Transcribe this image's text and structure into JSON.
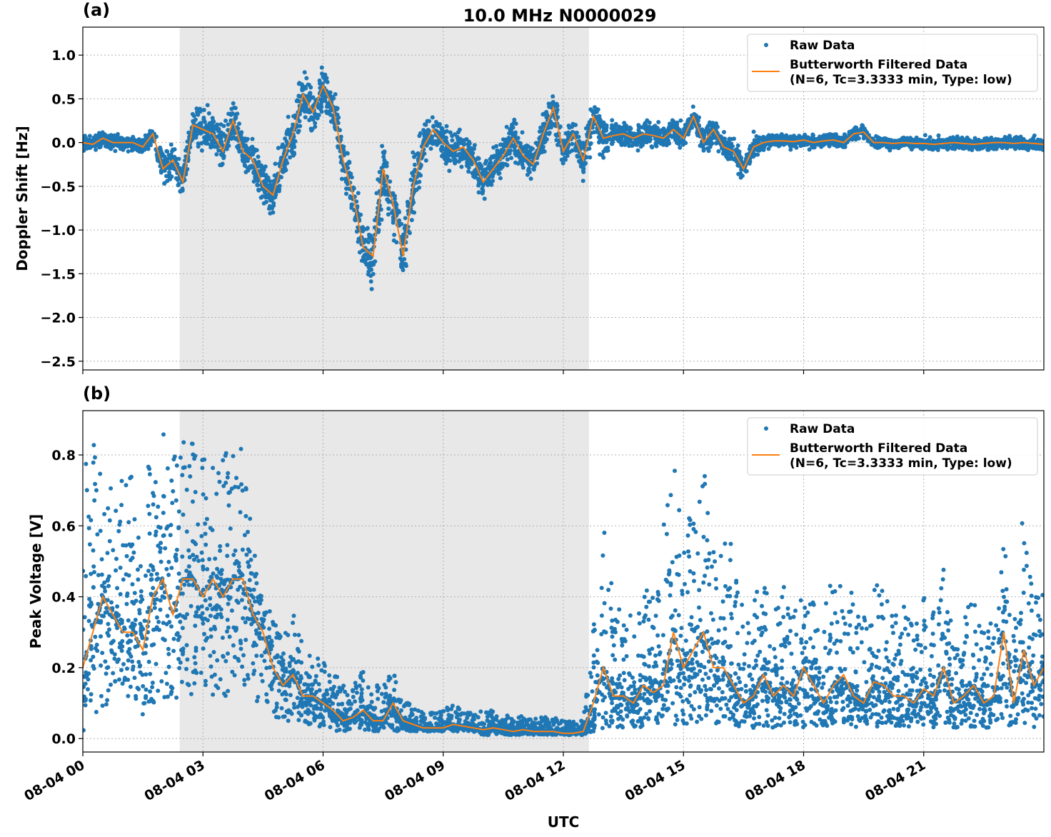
{
  "title": "10.0 MHz N0000029",
  "xlabel": "UTC",
  "x_ticks": [
    "08-04 00",
    "08-04 03",
    "08-04 06",
    "08-04 09",
    "08-04 12",
    "08-04 15",
    "08-04 18",
    "08-04 21"
  ],
  "legend": {
    "raw": "Raw Data",
    "filtered_line1": "Butterworth Filtered Data",
    "filtered_line2": "(N=6, Tc=3.3333 min, Type: low)"
  },
  "colors": {
    "raw": "#1f77b4",
    "filtered": "#ff7f0e",
    "shade": "#e8e8e8"
  },
  "chart_data": [
    {
      "type": "scatter",
      "panel_label": "(a)",
      "ylabel": "Doppler Shift [Hz]",
      "x_unit": "hours UTC on 08-04",
      "xlim": [
        0,
        24
      ],
      "ylim": [
        -2.6,
        1.32
      ],
      "y_ticks": [
        1.0,
        0.5,
        0.0,
        -0.5,
        -1.0,
        -1.5,
        -2.0,
        -2.5
      ],
      "y_tick_labels": [
        "1.0",
        "0.5",
        "0.0",
        "−0.5",
        "−1.0",
        "−1.5",
        "−2.0",
        "−2.5"
      ],
      "grid": true,
      "legend_position": "top-right",
      "shaded_interval_hours": [
        2.42,
        12.64
      ],
      "sample_step_hours": 0.25,
      "filtered": [
        0.0,
        -0.02,
        0.05,
        0.0,
        0.0,
        0.0,
        -0.05,
        0.1,
        -0.3,
        -0.2,
        -0.45,
        0.2,
        0.15,
        0.1,
        -0.1,
        0.25,
        -0.1,
        -0.2,
        -0.5,
        -0.6,
        -0.2,
        0.1,
        0.55,
        0.35,
        0.65,
        0.4,
        -0.2,
        -0.6,
        -1.2,
        -1.3,
        -0.3,
        -0.7,
        -1.3,
        -0.5,
        -0.05,
        0.15,
        0.0,
        -0.1,
        -0.05,
        -0.2,
        -0.45,
        -0.3,
        -0.15,
        0.05,
        -0.15,
        -0.25,
        0.1,
        0.4,
        -0.1,
        0.1,
        -0.2,
        0.3,
        0.05,
        0.08,
        0.1,
        0.05,
        0.1,
        0.08,
        0.05,
        0.15,
        0.05,
        0.3,
        0.0,
        0.15,
        -0.05,
        -0.1,
        -0.3,
        -0.05,
        0.0,
        0.02,
        0.02,
        0.01,
        0.03,
        0.0,
        0.02,
        0.03,
        0.0,
        0.1,
        0.12,
        0.0,
        0.0,
        -0.01,
        0.0,
        -0.01,
        -0.01,
        -0.02,
        -0.01,
        0.0,
        -0.01,
        -0.02,
        -0.01,
        0.0,
        0.0,
        -0.01,
        0.0,
        -0.01,
        -0.02
      ],
      "raw_spread": [
        0.12,
        0.12,
        0.12,
        0.12,
        0.12,
        0.12,
        0.12,
        0.12,
        0.25,
        0.25,
        0.25,
        0.25,
        0.35,
        0.35,
        0.35,
        0.35,
        0.35,
        0.35,
        0.35,
        0.35,
        0.4,
        0.4,
        0.4,
        0.4,
        0.4,
        0.4,
        0.4,
        0.4,
        0.5,
        0.5,
        0.5,
        0.5,
        0.5,
        0.5,
        0.3,
        0.3,
        0.3,
        0.3,
        0.3,
        0.3,
        0.3,
        0.3,
        0.3,
        0.3,
        0.3,
        0.3,
        0.3,
        0.3,
        0.3,
        0.3,
        0.35,
        0.35,
        0.35,
        0.2,
        0.2,
        0.2,
        0.2,
        0.2,
        0.2,
        0.2,
        0.2,
        0.2,
        0.2,
        0.2,
        0.2,
        0.2,
        0.2,
        0.2,
        0.1,
        0.1,
        0.1,
        0.1,
        0.1,
        0.1,
        0.1,
        0.1,
        0.1,
        0.1,
        0.1,
        0.1,
        0.1,
        0.1,
        0.1,
        0.1,
        0.1,
        0.1,
        0.1,
        0.1,
        0.1,
        0.1,
        0.1,
        0.1,
        0.1,
        0.1,
        0.1,
        0.1,
        0.1
      ]
    },
    {
      "type": "scatter",
      "panel_label": "(b)",
      "ylabel": "Peak Voltage [V]",
      "x_unit": "hours UTC on 08-04",
      "xlim": [
        0,
        24
      ],
      "ylim": [
        -0.038,
        0.925
      ],
      "y_ticks": [
        0.0,
        0.2,
        0.4,
        0.6,
        0.8
      ],
      "y_tick_labels": [
        "0.0",
        "0.2",
        "0.4",
        "0.6",
        "0.8"
      ],
      "grid": true,
      "legend_position": "top-right",
      "shaded_interval_hours": [
        2.42,
        12.64
      ],
      "sample_step_hours": 0.25,
      "filtered": [
        0.2,
        0.3,
        0.4,
        0.35,
        0.3,
        0.3,
        0.25,
        0.4,
        0.45,
        0.35,
        0.45,
        0.45,
        0.4,
        0.45,
        0.4,
        0.45,
        0.45,
        0.35,
        0.3,
        0.2,
        0.15,
        0.18,
        0.12,
        0.12,
        0.1,
        0.08,
        0.05,
        0.06,
        0.08,
        0.05,
        0.05,
        0.1,
        0.05,
        0.04,
        0.03,
        0.03,
        0.03,
        0.04,
        0.035,
        0.03,
        0.025,
        0.03,
        0.025,
        0.02,
        0.025,
        0.02,
        0.02,
        0.02,
        0.015,
        0.015,
        0.02,
        0.1,
        0.2,
        0.12,
        0.12,
        0.1,
        0.15,
        0.13,
        0.15,
        0.3,
        0.2,
        0.25,
        0.3,
        0.2,
        0.2,
        0.15,
        0.1,
        0.12,
        0.18,
        0.12,
        0.15,
        0.12,
        0.2,
        0.15,
        0.1,
        0.15,
        0.18,
        0.12,
        0.1,
        0.16,
        0.15,
        0.12,
        0.12,
        0.1,
        0.14,
        0.12,
        0.2,
        0.1,
        0.12,
        0.15,
        0.1,
        0.12,
        0.3,
        0.1,
        0.25,
        0.15,
        0.2
      ],
      "raw_high": [
        0.8,
        0.84,
        0.8,
        0.7,
        0.75,
        0.75,
        0.7,
        0.85,
        0.88,
        0.8,
        0.85,
        0.85,
        0.8,
        0.82,
        0.8,
        0.83,
        0.84,
        0.55,
        0.4,
        0.35,
        0.3,
        0.37,
        0.28,
        0.25,
        0.3,
        0.2,
        0.15,
        0.15,
        0.2,
        0.15,
        0.15,
        0.22,
        0.12,
        0.1,
        0.08,
        0.08,
        0.08,
        0.1,
        0.08,
        0.07,
        0.08,
        0.08,
        0.07,
        0.06,
        0.07,
        0.06,
        0.06,
        0.06,
        0.05,
        0.05,
        0.05,
        0.35,
        0.6,
        0.4,
        0.35,
        0.4,
        0.45,
        0.4,
        0.65,
        0.78,
        0.65,
        0.7,
        0.76,
        0.6,
        0.6,
        0.55,
        0.35,
        0.4,
        0.45,
        0.4,
        0.45,
        0.38,
        0.42,
        0.4,
        0.35,
        0.5,
        0.55,
        0.38,
        0.35,
        0.45,
        0.45,
        0.35,
        0.4,
        0.3,
        0.4,
        0.38,
        0.48,
        0.3,
        0.35,
        0.4,
        0.3,
        0.35,
        0.6,
        0.3,
        0.68,
        0.45,
        0.42
      ],
      "raw_low": [
        0.02,
        0.05,
        0.08,
        0.1,
        0.1,
        0.08,
        0.06,
        0.1,
        0.12,
        0.1,
        0.12,
        0.12,
        0.12,
        0.12,
        0.12,
        0.12,
        0.15,
        0.1,
        0.1,
        0.06,
        0.05,
        0.05,
        0.04,
        0.04,
        0.03,
        0.02,
        0.02,
        0.02,
        0.02,
        0.02,
        0.02,
        0.02,
        0.02,
        0.02,
        0.02,
        0.02,
        0.02,
        0.02,
        0.02,
        0.02,
        0.01,
        0.01,
        0.01,
        0.01,
        0.01,
        0.01,
        0.01,
        0.01,
        0.01,
        0.01,
        0.01,
        0.02,
        0.03,
        0.03,
        0.03,
        0.03,
        0.03,
        0.03,
        0.03,
        0.04,
        0.04,
        0.04,
        0.04,
        0.04,
        0.03,
        0.03,
        0.03,
        0.03,
        0.03,
        0.03,
        0.03,
        0.03,
        0.03,
        0.03,
        0.03,
        0.03,
        0.03,
        0.03,
        0.03,
        0.03,
        0.03,
        0.03,
        0.03,
        0.03,
        0.03,
        0.03,
        0.03,
        0.03,
        0.03,
        0.03,
        0.03,
        0.03,
        0.03,
        0.03,
        0.03,
        0.03,
        0.03
      ]
    }
  ]
}
